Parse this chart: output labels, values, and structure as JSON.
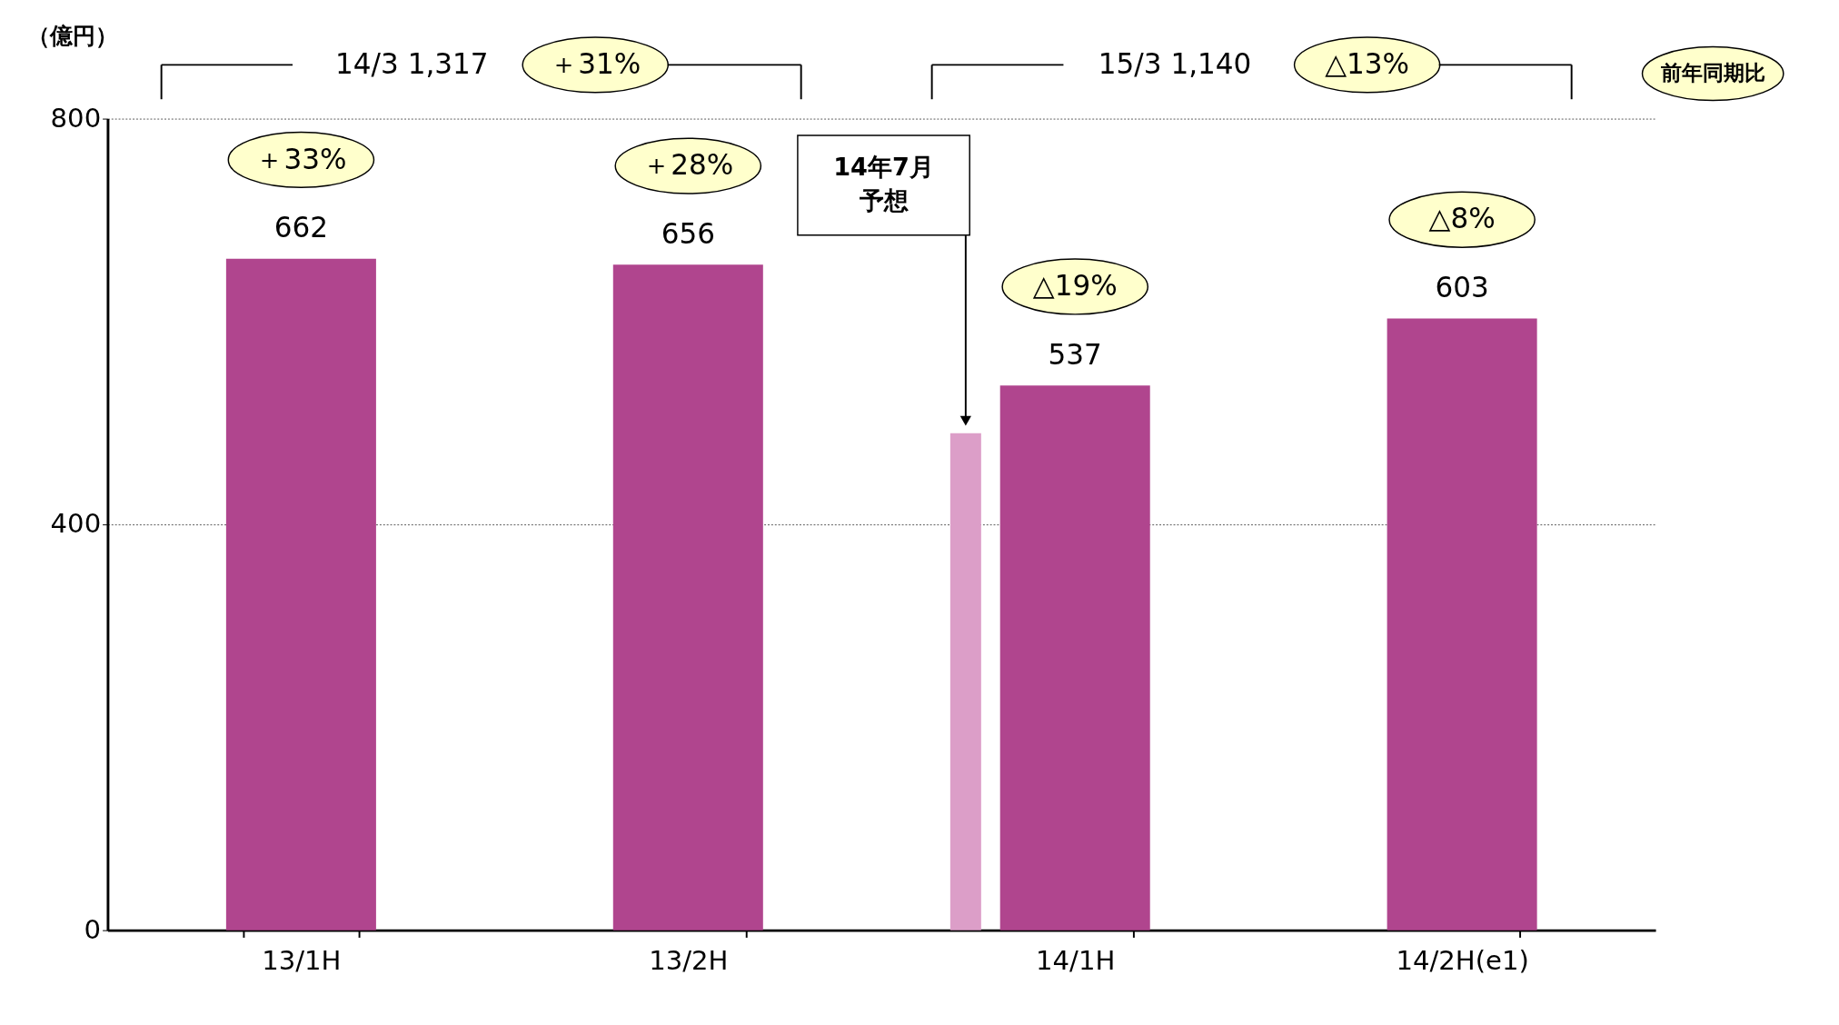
{
  "chart_data": {
    "type": "bar",
    "categories": [
      "13/1H",
      "13/2H",
      "14/1H",
      "14/2H(e1)"
    ],
    "series": [
      {
        "color": "#b0458e",
        "values": [
          662,
          656,
          537,
          603
        ],
        "value_labels": [
          "662",
          "656",
          "537",
          "603"
        ]
      },
      {
        "color": "#dc9ec8",
        "values": [
          null,
          null,
          490,
          null
        ]
      }
    ],
    "ylim": [
      0,
      800
    ],
    "yticks": [
      0,
      400,
      800
    ],
    "grid": "y",
    "annotations": [
      "（億円）",
      "14/3  1,317",
      "＋31%",
      "15/3  1,140",
      "△13%",
      "前年同期比",
      "＋33%",
      "＋28%",
      "△19%",
      "△8%",
      "14年7月",
      "予想"
    ]
  }
}
